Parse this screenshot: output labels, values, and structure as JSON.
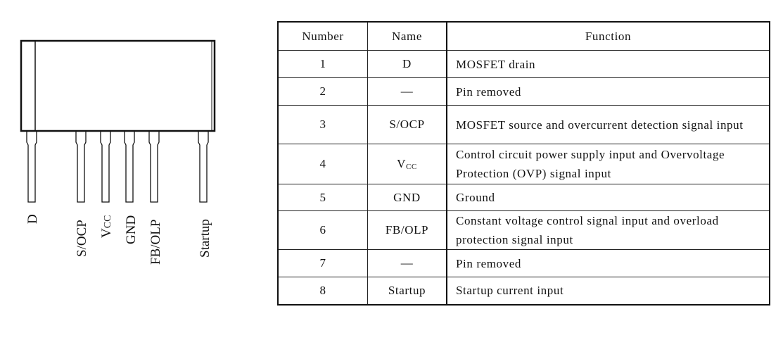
{
  "diagram": {
    "pins": [
      {
        "label": "D"
      },
      {
        "label": "S/OCP"
      },
      {
        "label": "V",
        "sub": "CC"
      },
      {
        "label": "GND"
      },
      {
        "label": "FB/OLP"
      },
      {
        "label": "Startup"
      }
    ]
  },
  "table": {
    "headers": {
      "number": "Number",
      "name": "Name",
      "function": "Function"
    },
    "rows": [
      {
        "number": "1",
        "name": "D",
        "function": "MOSFET drain"
      },
      {
        "number": "2",
        "name": "—",
        "function": "Pin removed"
      },
      {
        "number": "3",
        "name": "S/OCP",
        "function": "MOSFET source and overcurrent detection signal input"
      },
      {
        "number": "4",
        "name": "V",
        "name_sub": "CC",
        "function": "Control circuit power supply input and Overvoltage Protection (OVP) signal input"
      },
      {
        "number": "5",
        "name": "GND",
        "function": "Ground"
      },
      {
        "number": "6",
        "name": "FB/OLP",
        "function": "Constant voltage control signal input and overload protection signal input"
      },
      {
        "number": "7",
        "name": "—",
        "function": "Pin removed"
      },
      {
        "number": "8",
        "name": "Startup",
        "function": "Startup current input"
      }
    ]
  }
}
